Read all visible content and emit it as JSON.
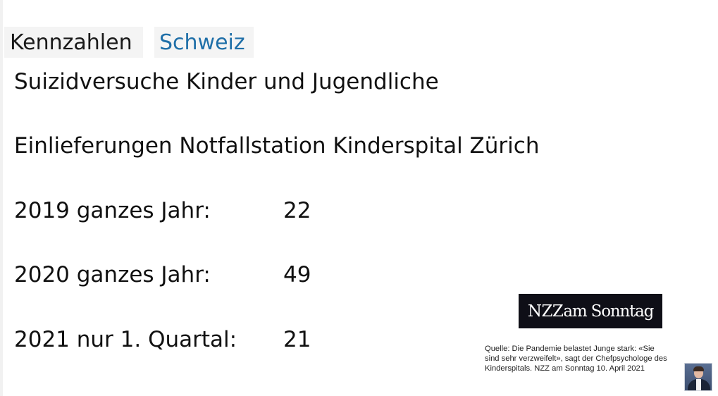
{
  "header": {
    "title_part1": "Kennzahlen",
    "title_part2": "Schweiz"
  },
  "slide": {
    "subtitle": "Suizidversuche Kinder und Jugendliche",
    "station": "Einlieferungen Notfallstation Kinderspital Zürich",
    "rows": [
      {
        "label": "2019 ganzes Jahr:",
        "value": "22"
      },
      {
        "label": "2020 ganzes Jahr:",
        "value": "49"
      },
      {
        "label": "2021 nur 1. Quartal:",
        "value": "21"
      }
    ]
  },
  "logo": {
    "text_nzz": "NZZ",
    "text_rest": "am Sonntag"
  },
  "source": {
    "line1": "Quelle: Die Pandemie belastet Junge stark: «Sie",
    "line2": "sind sehr verzweifelt», sagt der Chefpsychologe des",
    "line3": "Kinderspitals. NZZ am Sonntag 10. April 2021"
  },
  "colors": {
    "accent_blue": "#1f6fa8",
    "logo_bg": "#0f0f17"
  },
  "icons": {
    "speaker": "presenter-video-thumbnail"
  }
}
